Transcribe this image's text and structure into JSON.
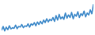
{
  "chart_data": {
    "type": "line",
    "categories": [
      null,
      null,
      null,
      null,
      null,
      null,
      null,
      null,
      null,
      null,
      null,
      null,
      null,
      null,
      null,
      null,
      null,
      null,
      null,
      null,
      null,
      null,
      null,
      null,
      null,
      null,
      null,
      null,
      null,
      null,
      null,
      null,
      null,
      null,
      null,
      null,
      null,
      null,
      null,
      null,
      null,
      null,
      null,
      null,
      null,
      null,
      null,
      null,
      null,
      null,
      null,
      null,
      null,
      null,
      null,
      null,
      null,
      null,
      null,
      null
    ],
    "values": [
      10,
      22,
      8,
      20,
      12,
      24,
      14,
      18,
      16,
      26,
      15,
      22,
      20,
      28,
      18,
      24,
      22,
      30,
      20,
      30,
      26,
      34,
      24,
      36,
      28,
      38,
      30,
      42,
      34,
      46,
      36,
      44,
      40,
      50,
      38,
      56,
      42,
      60,
      46,
      52,
      44,
      64,
      48,
      58,
      50,
      66,
      46,
      60,
      54,
      68,
      50,
      62,
      56,
      70,
      52,
      64,
      58,
      74,
      62,
      92
    ],
    "color": "#3a87c8",
    "ylim": [
      0,
      100
    ],
    "tick_labels": false,
    "grid": false
  }
}
